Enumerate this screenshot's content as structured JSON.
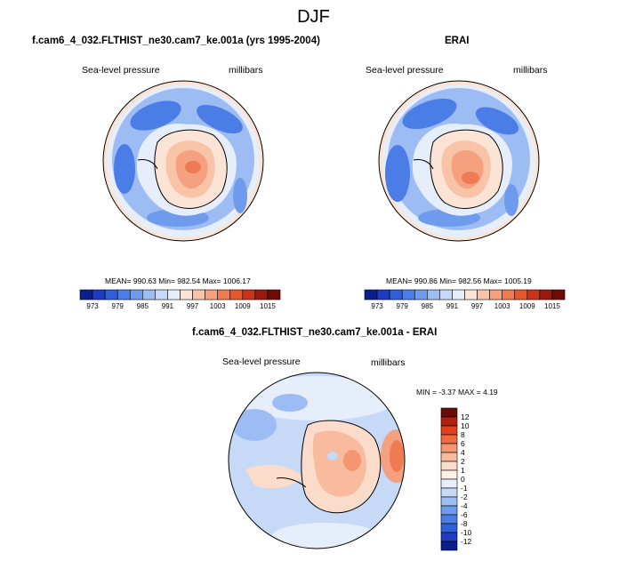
{
  "title": "DJF",
  "panels": [
    {
      "id": "model",
      "title": "f.cam6_4_032.FLTHIST_ne30.cam7_ke.001a (yrs 1995-2004)",
      "left_label": "Sea-level pressure",
      "right_label": "millibars",
      "stats": "MEAN= 990.63  Min= 982.54  Max= 1006.17"
    },
    {
      "id": "obs",
      "title": "ERAI",
      "left_label": "Sea-level pressure",
      "right_label": "millibars",
      "stats": "MEAN= 990.86  Min= 982.56  Max= 1005.19"
    }
  ],
  "diff": {
    "title": "f.cam6_4_032.FLTHIST_ne30.cam7_ke.001a - ERAI",
    "left_label": "Sea-level pressure",
    "right_label": "millibars",
    "stats": "MIN =  -3.37 MAX =  4.19"
  },
  "colorbar_main": {
    "colors": [
      "#0b1e8c",
      "#1f3bc4",
      "#2f5fdb",
      "#4a7de6",
      "#6f9bed",
      "#9dbcf3",
      "#c6d9f7",
      "#e6eefb",
      "#fbe3d6",
      "#f9c3a8",
      "#f5a07e",
      "#ef7b55",
      "#e4572f",
      "#c9331a",
      "#9b1a0f",
      "#6b0c07"
    ],
    "labels": [
      "973",
      "979",
      "985",
      "991",
      "997",
      "1003",
      "1009",
      "1015"
    ]
  },
  "colorbar_diff": {
    "colors": [
      "#6b0c07",
      "#b3200f",
      "#e0401c",
      "#ef6a3e",
      "#f59672",
      "#f8bb9d",
      "#fbdccb",
      "#fdf2e8",
      "#e6eefb",
      "#c6d9f7",
      "#9dbcf3",
      "#6f9bed",
      "#4a7de6",
      "#2f5fdb",
      "#1f3bc4",
      "#0b1e8c"
    ],
    "labels": [
      "12",
      "10",
      "8",
      "6",
      "4",
      "2",
      "1",
      "0",
      "-1",
      "-2",
      "-4",
      "-6",
      "-8",
      "-10",
      "-12"
    ]
  }
}
